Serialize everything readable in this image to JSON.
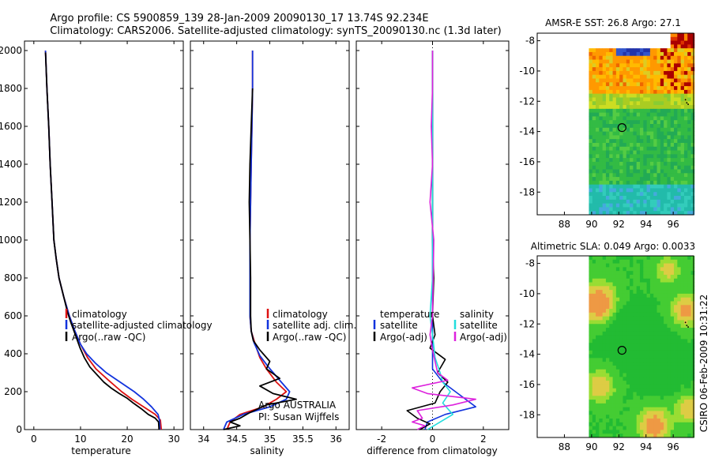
{
  "title": {
    "line1": "Argo profile: CS 5900859_139 28-Jan-2009 20090130_17 13.74S 92.234E",
    "line2": "Climatology: CARS2006. Satellite-adjusted climatology: synTS_20090130.nc (1.3d later)"
  },
  "footer": "CSIRO 06-Feb-2009 10:31:22",
  "colors": {
    "climatology": "#dd1111",
    "satellite": "#1133dd",
    "argo": "#000000",
    "salinity_satellite": "#22dddd",
    "salinity_argo": "#dd22dd",
    "zero_line": "#000000"
  },
  "chart_data": [
    {
      "type": "line",
      "id": "temperature",
      "xlabel": "temperature",
      "ylabel": "",
      "xlim": [
        -2,
        32
      ],
      "ylim": [
        2050,
        0
      ],
      "xticks": [
        0,
        10,
        20,
        30
      ],
      "yticks": [
        0,
        200,
        400,
        600,
        800,
        1000,
        1200,
        1400,
        1600,
        1800,
        2000
      ],
      "legend": [
        "climatology",
        "satellite-adjusted climatology",
        "Argo(..raw -QC)"
      ],
      "series": [
        {
          "name": "climatology",
          "color_key": "climatology",
          "points": [
            [
              27.3,
              0
            ],
            [
              27.1,
              50
            ],
            [
              26.0,
              80
            ],
            [
              23.5,
              120
            ],
            [
              21.0,
              160
            ],
            [
              18.8,
              200
            ],
            [
              16.0,
              260
            ],
            [
              13.3,
              320
            ],
            [
              11.5,
              380
            ],
            [
              10.0,
              450
            ],
            [
              8.8,
              520
            ],
            [
              7.6,
              600
            ],
            [
              6.4,
              700
            ],
            [
              5.4,
              800
            ],
            [
              4.8,
              900
            ],
            [
              4.3,
              1000
            ],
            [
              3.9,
              1200
            ],
            [
              3.5,
              1400
            ],
            [
              3.2,
              1600
            ],
            [
              2.8,
              1800
            ],
            [
              2.5,
              2000
            ]
          ]
        },
        {
          "name": "satellite-adjusted climatology",
          "color_key": "satellite",
          "points": [
            [
              27.0,
              0
            ],
            [
              26.9,
              50
            ],
            [
              26.6,
              80
            ],
            [
              25.2,
              120
            ],
            [
              23.5,
              160
            ],
            [
              21.5,
              200
            ],
            [
              18.5,
              250
            ],
            [
              15.5,
              300
            ],
            [
              13.2,
              350
            ],
            [
              11.3,
              400
            ],
            [
              10.0,
              450
            ],
            [
              8.8,
              520
            ],
            [
              7.6,
              600
            ],
            [
              6.4,
              700
            ],
            [
              5.4,
              800
            ],
            [
              4.8,
              900
            ],
            [
              4.3,
              1000
            ],
            [
              3.9,
              1200
            ],
            [
              3.5,
              1400
            ],
            [
              3.2,
              1600
            ],
            [
              2.8,
              1800
            ],
            [
              2.5,
              2000
            ]
          ]
        },
        {
          "name": "Argo(..raw -QC)",
          "color_key": "argo",
          "points": [
            [
              26.8,
              0
            ],
            [
              26.7,
              40
            ],
            [
              26.0,
              60
            ],
            [
              24.5,
              80
            ],
            [
              23.0,
              110
            ],
            [
              21.3,
              140
            ],
            [
              20.0,
              165
            ],
            [
              18.3,
              190
            ],
            [
              16.5,
              220
            ],
            [
              15.0,
              250
            ],
            [
              13.5,
              290
            ],
            [
              12.0,
              330
            ],
            [
              10.8,
              380
            ],
            [
              9.9,
              430
            ],
            [
              8.9,
              500
            ],
            [
              8.0,
              560
            ],
            [
              7.2,
              620
            ],
            [
              6.4,
              700
            ],
            [
              5.4,
              800
            ],
            [
              4.8,
              900
            ],
            [
              4.3,
              1000
            ],
            [
              3.9,
              1200
            ],
            [
              3.5,
              1400
            ],
            [
              3.2,
              1600
            ],
            [
              2.8,
              1800
            ],
            [
              2.5,
              1990
            ]
          ]
        }
      ]
    },
    {
      "type": "line",
      "id": "salinity",
      "xlabel": "salinity",
      "ylabel": "",
      "xlim": [
        33.8,
        36.2
      ],
      "ylim": [
        2050,
        0
      ],
      "xticks": [
        34,
        34.5,
        35,
        35.5,
        36
      ],
      "yticks": [
        0,
        200,
        400,
        600,
        800,
        1000,
        1200,
        1400,
        1600,
        1800,
        2000
      ],
      "legend": [
        "climatology",
        "satellite adj. clim.",
        "Argo(..raw -QC)"
      ],
      "annotation": [
        "Argo AUSTRALIA",
        "PI: Susan Wijffels"
      ],
      "series": [
        {
          "name": "climatology",
          "color_key": "climatology",
          "points": [
            [
              34.35,
              0
            ],
            [
              34.4,
              40
            ],
            [
              34.55,
              80
            ],
            [
              34.9,
              120
            ],
            [
              35.1,
              160
            ],
            [
              35.25,
              200
            ],
            [
              35.1,
              250
            ],
            [
              34.95,
              320
            ],
            [
              34.85,
              380
            ],
            [
              34.78,
              450
            ],
            [
              34.72,
              520
            ],
            [
              34.7,
              600
            ],
            [
              34.7,
              800
            ],
            [
              34.7,
              1000
            ],
            [
              34.71,
              1200
            ],
            [
              34.72,
              1400
            ],
            [
              34.73,
              1600
            ],
            [
              34.74,
              1800
            ],
            [
              34.74,
              2000
            ]
          ]
        },
        {
          "name": "satellite adj. clim.",
          "color_key": "satellite",
          "points": [
            [
              34.3,
              0
            ],
            [
              34.35,
              40
            ],
            [
              34.6,
              80
            ],
            [
              35.0,
              120
            ],
            [
              35.25,
              160
            ],
            [
              35.3,
              200
            ],
            [
              35.15,
              260
            ],
            [
              34.98,
              330
            ],
            [
              34.85,
              390
            ],
            [
              34.76,
              460
            ],
            [
              34.72,
              520
            ],
            [
              34.7,
              600
            ],
            [
              34.7,
              800
            ],
            [
              34.7,
              1000
            ],
            [
              34.71,
              1200
            ],
            [
              34.72,
              1400
            ],
            [
              34.73,
              1600
            ],
            [
              34.74,
              1800
            ],
            [
              34.74,
              2000
            ]
          ]
        },
        {
          "name": "Argo(..raw -QC)",
          "color_key": "argo",
          "points": [
            [
              34.3,
              0
            ],
            [
              34.55,
              20
            ],
            [
              34.4,
              40
            ],
            [
              34.55,
              60
            ],
            [
              34.7,
              90
            ],
            [
              34.95,
              130
            ],
            [
              35.4,
              160
            ],
            [
              35.05,
              190
            ],
            [
              34.85,
              230
            ],
            [
              35.15,
              270
            ],
            [
              34.95,
              320
            ],
            [
              35.0,
              360
            ],
            [
              34.85,
              420
            ],
            [
              34.75,
              470
            ],
            [
              34.72,
              520
            ],
            [
              34.71,
              600
            ],
            [
              34.71,
              800
            ],
            [
              34.7,
              1000
            ],
            [
              34.69,
              1200
            ],
            [
              34.7,
              1400
            ],
            [
              34.72,
              1600
            ],
            [
              34.74,
              1800
            ]
          ]
        }
      ]
    },
    {
      "type": "line",
      "id": "difference",
      "xlabel": "difference from climatology",
      "ylabel": "",
      "xlim": [
        -3,
        3
      ],
      "ylim": [
        2050,
        0
      ],
      "xticks": [
        -2,
        0,
        2
      ],
      "yticks": [
        0,
        200,
        400,
        600,
        800,
        1000,
        1200,
        1400,
        1600,
        1800,
        2000
      ],
      "legend_temperature": {
        "header": "temperature",
        "items": [
          "satellite",
          "Argo(-adj)"
        ]
      },
      "legend_salinity": {
        "header": "salinity",
        "items": [
          "satellite",
          "Argo(-adj)"
        ]
      },
      "series": [
        {
          "name": "temperature satellite",
          "color_key": "satellite",
          "points": [
            [
              -0.3,
              0
            ],
            [
              -0.2,
              40
            ],
            [
              0.5,
              80
            ],
            [
              1.7,
              120
            ],
            [
              0.9,
              200
            ],
            [
              0.4,
              250
            ],
            [
              0.0,
              320
            ],
            [
              0.0,
              400
            ],
            [
              0.0,
              2000
            ]
          ]
        },
        {
          "name": "temperature Argo(-adj)",
          "color_key": "argo",
          "points": [
            [
              -0.5,
              0
            ],
            [
              -0.1,
              30
            ],
            [
              -0.6,
              60
            ],
            [
              -1.0,
              100
            ],
            [
              0.1,
              140
            ],
            [
              0.3,
              200
            ],
            [
              0.6,
              250
            ],
            [
              0.2,
              300
            ],
            [
              0.5,
              370
            ],
            [
              -0.1,
              430
            ],
            [
              0.1,
              500
            ],
            [
              0.0,
              600
            ],
            [
              0.05,
              800
            ],
            [
              0.0,
              1000
            ],
            [
              0.0,
              1200
            ],
            [
              0.0,
              1400
            ],
            [
              0.0,
              1800
            ],
            [
              0.0,
              2000
            ]
          ]
        },
        {
          "name": "salinity satellite",
          "color_key": "salinity_satellite",
          "points": [
            [
              -0.2,
              0
            ],
            [
              0.3,
              40
            ],
            [
              0.8,
              80
            ],
            [
              0.4,
              140
            ],
            [
              0.7,
              200
            ],
            [
              0.4,
              250
            ],
            [
              0.3,
              300
            ],
            [
              0.1,
              380
            ],
            [
              0.0,
              500
            ],
            [
              -0.1,
              600
            ],
            [
              0.0,
              800
            ],
            [
              0.0,
              1000
            ],
            [
              0.0,
              1400
            ],
            [
              0.0,
              2000
            ]
          ]
        },
        {
          "name": "salinity Argo(-adj)",
          "color_key": "salinity_argo",
          "points": [
            [
              -0.6,
              0
            ],
            [
              -0.3,
              20
            ],
            [
              -0.8,
              40
            ],
            [
              -0.4,
              60
            ],
            [
              -0.6,
              100
            ],
            [
              0.8,
              130
            ],
            [
              1.7,
              160
            ],
            [
              -0.2,
              190
            ],
            [
              -0.8,
              220
            ],
            [
              0.6,
              260
            ],
            [
              0.2,
              300
            ],
            [
              0.1,
              360
            ],
            [
              0.0,
              420
            ],
            [
              -0.1,
              500
            ],
            [
              0.0,
              600
            ],
            [
              0.05,
              1000
            ],
            [
              -0.1,
              1200
            ],
            [
              0.0,
              1400
            ],
            [
              -0.05,
              1600
            ],
            [
              0.0,
              1800
            ],
            [
              0.0,
              2000
            ]
          ]
        }
      ]
    },
    {
      "type": "heatmap",
      "id": "sst_map",
      "title": "AMSR-E SST: 26.8 Argo: 27.1",
      "xlim": [
        86,
        97.5
      ],
      "ylim": [
        -19.5,
        -7.5
      ],
      "xticks": [
        88,
        90,
        92,
        94,
        96
      ],
      "yticks": [
        -8,
        -10,
        -12,
        -14,
        -16,
        -18
      ],
      "marker": {
        "lon": 92.234,
        "lat": -13.74
      },
      "data_xlim": [
        89.8,
        97.5
      ],
      "note": "SST colour field: orange/red north of 12S, green/cyan south"
    },
    {
      "type": "heatmap",
      "id": "sla_map",
      "title": "Altimetric SLA: 0.049 Argo: 0.0033",
      "xlim": [
        86,
        97.5
      ],
      "ylim": [
        -19.5,
        -7.5
      ],
      "xticks": [
        88,
        90,
        92,
        94,
        96
      ],
      "yticks": [
        -8,
        -10,
        -12,
        -14,
        -16,
        -18
      ],
      "marker": {
        "lon": 92.234,
        "lat": -13.74
      },
      "data_xlim": [
        89.8,
        97.5
      ],
      "note": "SLA colour field: mostly green with yellow/orange patches"
    }
  ]
}
